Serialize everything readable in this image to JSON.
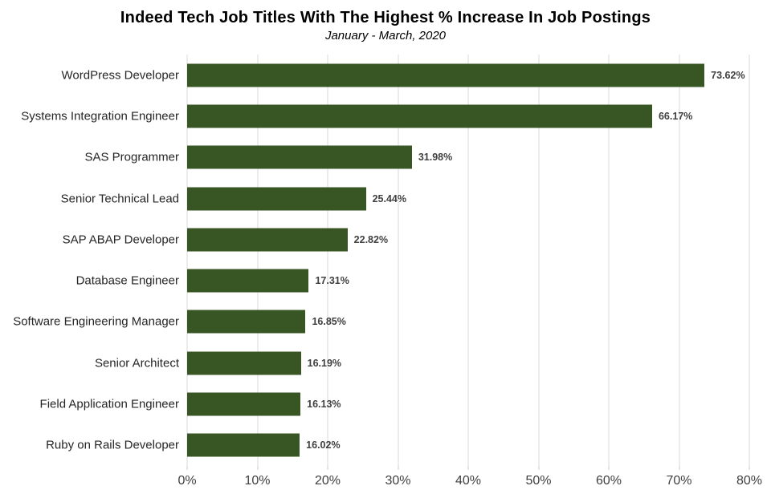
{
  "chart_data": {
    "type": "bar",
    "orientation": "horizontal",
    "title": "Indeed Tech Job Titles With The Highest % Increase In Job Postings",
    "subtitle": "January - March, 2020",
    "categories": [
      "WordPress Developer",
      "Systems Integration Engineer",
      "SAS Programmer",
      "Senior Technical Lead",
      "SAP ABAP Developer",
      "Database Engineer",
      "Software Engineering Manager",
      "Senior Architect",
      "Field Application Engineer",
      "Ruby on Rails Developer"
    ],
    "values": [
      73.62,
      66.17,
      31.98,
      25.44,
      22.82,
      17.31,
      16.85,
      16.19,
      16.13,
      16.02
    ],
    "data_labels": [
      "73.62%",
      "66.17%",
      "31.98%",
      "25.44%",
      "22.82%",
      "17.31%",
      "16.85%",
      "16.19%",
      "16.13%",
      "16.02%"
    ],
    "xlabel": "",
    "ylabel": "",
    "x_axis": {
      "min": 0,
      "max": 80,
      "tick_labels": [
        "0%",
        "10%",
        "20%",
        "30%",
        "40%",
        "50%",
        "60%",
        "70%",
        "80%"
      ]
    },
    "grid": true,
    "legend": "none",
    "colors": {
      "bar": "#375623",
      "gridline": "#d9d9d9",
      "tick": "#c9c9c9",
      "axis_text": "#404040",
      "value_text": "#404040",
      "category_text": "#262626",
      "title_text": "#000000",
      "background": "#ffffff"
    }
  }
}
